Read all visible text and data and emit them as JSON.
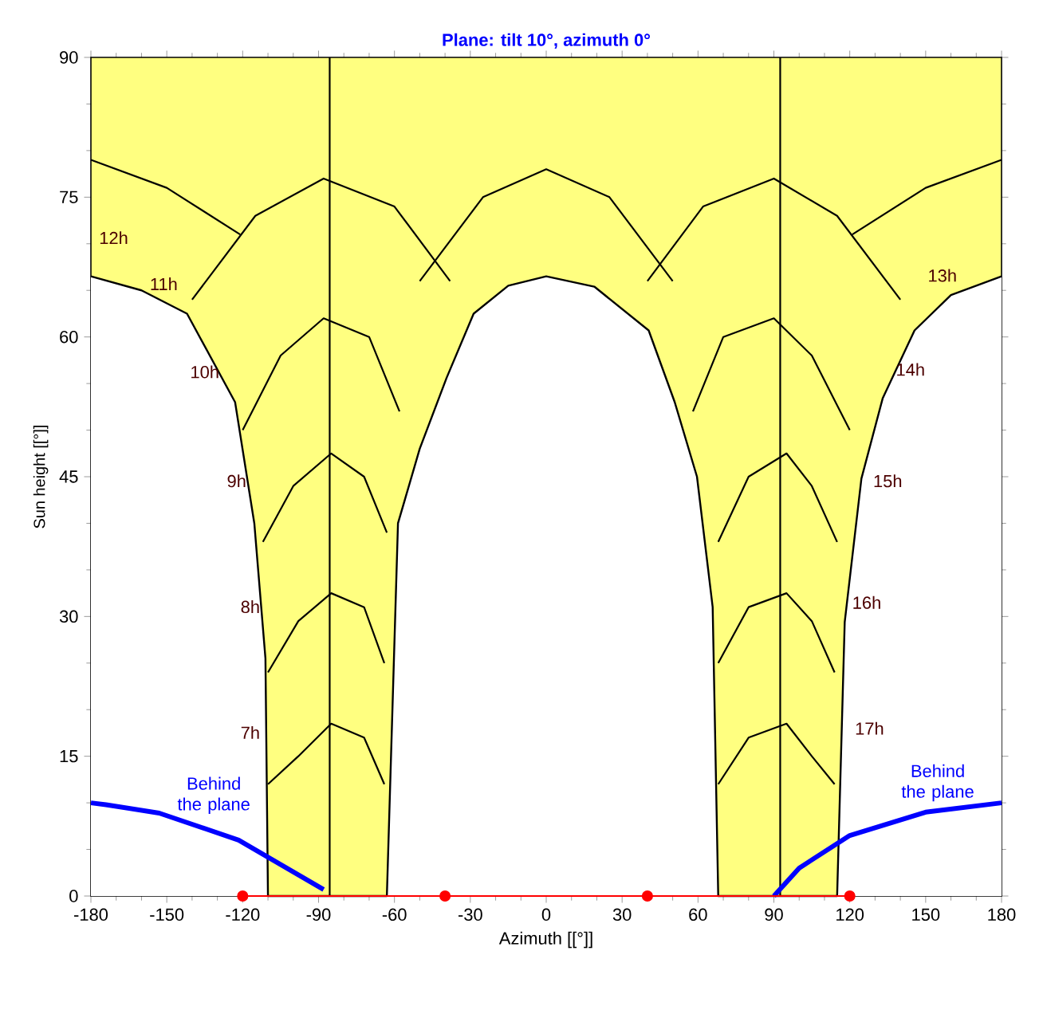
{
  "chart_data": {
    "type": "line",
    "title": "Plane: tilt 10°, azimuth 0°",
    "xlabel": "Azimuth [[°]]",
    "ylabel": "Sun height [[°]]",
    "xlim": [
      -180,
      180
    ],
    "ylim": [
      0,
      90
    ],
    "xticks": [
      -180,
      -150,
      -120,
      -90,
      -60,
      -30,
      0,
      30,
      60,
      90,
      120,
      150,
      180
    ],
    "yticks": [
      0,
      15,
      30,
      45,
      60,
      75,
      90
    ],
    "series": [
      {
        "type": "area",
        "color": "#ffffff",
        "x": [
          -180,
          -160,
          -142,
          -123,
          -115.4,
          -111,
          -110,
          -63,
          -58.6,
          -50,
          -39.4,
          -28.7,
          -15,
          0,
          19,
          40.5,
          50.8,
          59.6,
          65.8,
          68,
          115,
          118,
          124.6,
          133,
          145.6,
          160,
          180
        ],
        "values": [
          66.5,
          65,
          62.5,
          53,
          40,
          25.5,
          0,
          0,
          40,
          48,
          55.6,
          62.5,
          65.5,
          66.5,
          65.4,
          60.7,
          53,
          45,
          31,
          0,
          0,
          29.4,
          44.8,
          53.4,
          60.7,
          64.5,
          66.5
        ]
      },
      {
        "color": "#000000",
        "x": [
          -85.6,
          -85.6
        ],
        "values": [
          0,
          90
        ]
      },
      {
        "color": "#000000",
        "x": [
          92.5,
          92.5
        ],
        "values": [
          0,
          90
        ]
      },
      {
        "color": "#000000",
        "x": [
          -140,
          -115,
          -88,
          -60,
          -38
        ],
        "values": [
          64,
          73,
          77,
          74,
          66
        ]
      },
      {
        "color": "#000000",
        "x": [
          40,
          62,
          90,
          115,
          140
        ],
        "values": [
          66,
          74,
          77,
          73,
          64
        ]
      },
      {
        "color": "#000000",
        "x": [
          -50,
          -25,
          0,
          25,
          50
        ],
        "values": [
          66,
          75,
          78,
          75,
          66
        ]
      },
      {
        "color": "#000000",
        "x": [
          -180,
          -150,
          -121
        ],
        "values": [
          79,
          76,
          71
        ]
      },
      {
        "color": "#000000",
        "x": [
          121,
          150,
          180
        ],
        "values": [
          71,
          76,
          79
        ]
      },
      {
        "color": "#000000",
        "x": [
          -120,
          -105,
          -88,
          -70,
          -58
        ],
        "values": [
          50,
          58,
          62,
          60,
          52
        ]
      },
      {
        "color": "#000000",
        "x": [
          58,
          70,
          90,
          105,
          120
        ],
        "values": [
          52,
          60,
          62,
          58,
          50
        ]
      },
      {
        "color": "#000000",
        "x": [
          -112,
          -100,
          -85,
          -72,
          -63
        ],
        "values": [
          38,
          44,
          47.5,
          45,
          39
        ]
      },
      {
        "color": "#000000",
        "x": [
          68,
          80,
          95,
          105,
          115
        ],
        "values": [
          38,
          45,
          47.5,
          44,
          38
        ]
      },
      {
        "color": "#000000",
        "x": [
          -110,
          -98,
          -85,
          -72,
          -64
        ],
        "values": [
          24,
          29.5,
          32.5,
          31,
          25
        ]
      },
      {
        "color": "#000000",
        "x": [
          68,
          80,
          95,
          105,
          114
        ],
        "values": [
          25,
          31,
          32.5,
          29.5,
          24
        ]
      },
      {
        "color": "#000000",
        "x": [
          -110,
          -98,
          -85,
          -72,
          -64
        ],
        "values": [
          12,
          15,
          18.5,
          17,
          12
        ]
      },
      {
        "color": "#000000",
        "x": [
          68,
          80,
          95,
          105,
          114
        ],
        "values": [
          12,
          17,
          18.5,
          15,
          12
        ]
      },
      {
        "color": "#0000ff",
        "x": [
          -180,
          -174,
          -153,
          -121.6,
          -88
        ],
        "values": [
          10,
          9.8,
          8.9,
          6,
          0.7
        ]
      },
      {
        "color": "#0000ff",
        "x": [
          90,
          100,
          120,
          150,
          180
        ],
        "values": [
          0,
          3,
          6.5,
          9,
          10
        ]
      },
      {
        "color": "#ff0000",
        "marker": "circle",
        "x": [
          -120,
          -40,
          40,
          120
        ],
        "values": [
          0,
          0,
          0,
          0
        ]
      }
    ],
    "annotations": [
      "12h",
      "11h",
      "10h",
      "9h",
      "8h",
      "7h",
      "13h",
      "14h",
      "15h",
      "16h",
      "17h",
      "Behind the plane",
      "Behind the plane"
    ]
  }
}
